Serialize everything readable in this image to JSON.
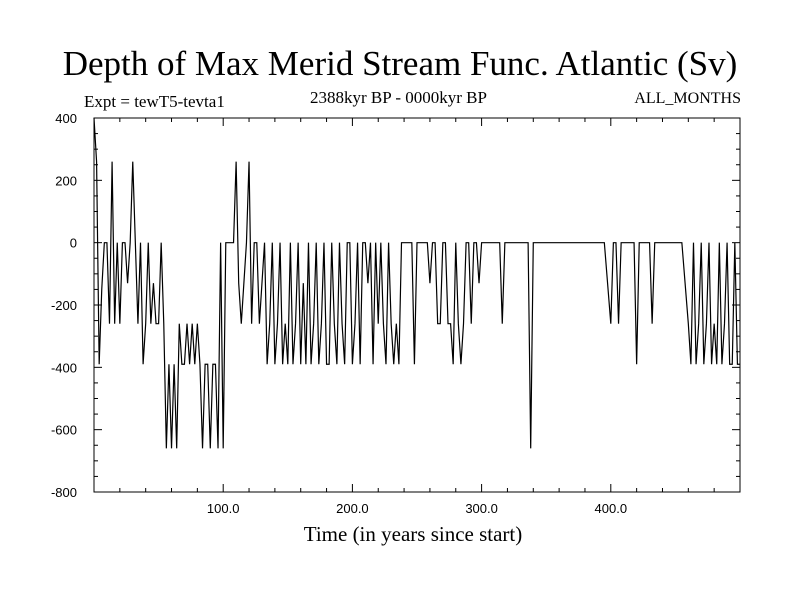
{
  "header": {
    "title": "Depth of Max Merid Stream Func. Atlantic (Sv)",
    "experiment": "Expt = tewT5-tevta1",
    "period": "2388kyr BP - 0000kyr BP",
    "months": "ALL_MONTHS"
  },
  "chart_data": {
    "type": "line",
    "title": "Depth of Max Merid Stream Func. Atlantic (Sv)",
    "xlabel": "Time (in years since start)",
    "ylabel": "",
    "xlim": [
      0,
      500
    ],
    "ylim": [
      -800,
      400
    ],
    "x_ticks": [
      100,
      200,
      300,
      400
    ],
    "x_tick_labels": [
      "100.0",
      "200.0",
      "300.0",
      "400.0"
    ],
    "y_ticks": [
      400,
      200,
      0,
      -200,
      -400,
      -600,
      -800
    ],
    "y_tick_labels": [
      "400",
      "200",
      "0",
      "-200",
      "-400",
      "-600",
      "-800"
    ],
    "grid": false,
    "series": [
      {
        "values": [
          [
            0,
            400
          ],
          [
            2,
            260
          ],
          [
            4,
            -390
          ],
          [
            6,
            -150
          ],
          [
            8,
            0
          ],
          [
            10,
            0
          ],
          [
            12,
            -260
          ],
          [
            14,
            260
          ],
          [
            16,
            -260
          ],
          [
            18,
            0
          ],
          [
            20,
            -260
          ],
          [
            22,
            0
          ],
          [
            24,
            0
          ],
          [
            26,
            -130
          ],
          [
            28,
            0
          ],
          [
            30,
            260
          ],
          [
            32,
            0
          ],
          [
            34,
            -260
          ],
          [
            36,
            0
          ],
          [
            38,
            -390
          ],
          [
            40,
            -260
          ],
          [
            42,
            0
          ],
          [
            44,
            -260
          ],
          [
            46,
            -130
          ],
          [
            48,
            -260
          ],
          [
            50,
            -260
          ],
          [
            52,
            0
          ],
          [
            54,
            -260
          ],
          [
            56,
            -660
          ],
          [
            58,
            -390
          ],
          [
            60,
            -660
          ],
          [
            62,
            -390
          ],
          [
            64,
            -660
          ],
          [
            66,
            -260
          ],
          [
            68,
            -390
          ],
          [
            70,
            -390
          ],
          [
            72,
            -260
          ],
          [
            74,
            -390
          ],
          [
            76,
            -260
          ],
          [
            78,
            -390
          ],
          [
            80,
            -260
          ],
          [
            82,
            -390
          ],
          [
            84,
            -660
          ],
          [
            86,
            -390
          ],
          [
            88,
            -390
          ],
          [
            90,
            -660
          ],
          [
            92,
            -390
          ],
          [
            94,
            -390
          ],
          [
            96,
            -660
          ],
          [
            98,
            0
          ],
          [
            100,
            -660
          ],
          [
            102,
            0
          ],
          [
            104,
            0
          ],
          [
            106,
            0
          ],
          [
            108,
            0
          ],
          [
            110,
            260
          ],
          [
            112,
            -130
          ],
          [
            114,
            -260
          ],
          [
            116,
            -130
          ],
          [
            118,
            0
          ],
          [
            120,
            260
          ],
          [
            122,
            -260
          ],
          [
            124,
            0
          ],
          [
            126,
            0
          ],
          [
            128,
            -260
          ],
          [
            130,
            -130
          ],
          [
            132,
            0
          ],
          [
            134,
            -390
          ],
          [
            136,
            -260
          ],
          [
            138,
            0
          ],
          [
            140,
            -390
          ],
          [
            142,
            -260
          ],
          [
            144,
            0
          ],
          [
            146,
            -390
          ],
          [
            148,
            -260
          ],
          [
            150,
            -390
          ],
          [
            152,
            0
          ],
          [
            154,
            -390
          ],
          [
            156,
            -260
          ],
          [
            158,
            0
          ],
          [
            160,
            -390
          ],
          [
            162,
            -130
          ],
          [
            164,
            -390
          ],
          [
            166,
            0
          ],
          [
            168,
            -390
          ],
          [
            170,
            -260
          ],
          [
            172,
            0
          ],
          [
            174,
            -390
          ],
          [
            176,
            -260
          ],
          [
            178,
            0
          ],
          [
            180,
            -390
          ],
          [
            182,
            -390
          ],
          [
            184,
            0
          ],
          [
            186,
            -260
          ],
          [
            188,
            -390
          ],
          [
            190,
            0
          ],
          [
            192,
            -260
          ],
          [
            194,
            -390
          ],
          [
            196,
            0
          ],
          [
            198,
            0
          ],
          [
            200,
            -390
          ],
          [
            202,
            -260
          ],
          [
            204,
            0
          ],
          [
            206,
            -390
          ],
          [
            208,
            0
          ],
          [
            210,
            0
          ],
          [
            212,
            -130
          ],
          [
            214,
            0
          ],
          [
            216,
            -390
          ],
          [
            218,
            0
          ],
          [
            220,
            -260
          ],
          [
            222,
            0
          ],
          [
            224,
            -260
          ],
          [
            226,
            -390
          ],
          [
            228,
            0
          ],
          [
            230,
            -260
          ],
          [
            232,
            -390
          ],
          [
            234,
            -260
          ],
          [
            236,
            -390
          ],
          [
            238,
            0
          ],
          [
            240,
            0
          ],
          [
            242,
            0
          ],
          [
            244,
            0
          ],
          [
            246,
            0
          ],
          [
            248,
            -390
          ],
          [
            250,
            0
          ],
          [
            252,
            0
          ],
          [
            254,
            0
          ],
          [
            256,
            0
          ],
          [
            258,
            0
          ],
          [
            260,
            -130
          ],
          [
            262,
            0
          ],
          [
            264,
            0
          ],
          [
            266,
            -260
          ],
          [
            268,
            -260
          ],
          [
            270,
            0
          ],
          [
            272,
            0
          ],
          [
            274,
            -260
          ],
          [
            276,
            -260
          ],
          [
            278,
            -390
          ],
          [
            280,
            0
          ],
          [
            282,
            -260
          ],
          [
            284,
            -390
          ],
          [
            286,
            -260
          ],
          [
            288,
            0
          ],
          [
            290,
            0
          ],
          [
            292,
            -260
          ],
          [
            294,
            0
          ],
          [
            296,
            0
          ],
          [
            298,
            -130
          ],
          [
            300,
            0
          ],
          [
            302,
            0
          ],
          [
            304,
            0
          ],
          [
            306,
            0
          ],
          [
            308,
            0
          ],
          [
            310,
            0
          ],
          [
            312,
            0
          ],
          [
            314,
            0
          ],
          [
            316,
            -260
          ],
          [
            318,
            0
          ],
          [
            320,
            0
          ],
          [
            322,
            0
          ],
          [
            324,
            0
          ],
          [
            326,
            0
          ],
          [
            328,
            0
          ],
          [
            330,
            0
          ],
          [
            332,
            0
          ],
          [
            334,
            0
          ],
          [
            336,
            0
          ],
          [
            338,
            -660
          ],
          [
            340,
            0
          ],
          [
            342,
            0
          ],
          [
            360,
            0
          ],
          [
            380,
            0
          ],
          [
            390,
            0
          ],
          [
            395,
            0
          ],
          [
            400,
            -260
          ],
          [
            402,
            0
          ],
          [
            404,
            0
          ],
          [
            406,
            -260
          ],
          [
            408,
            0
          ],
          [
            410,
            0
          ],
          [
            412,
            0
          ],
          [
            414,
            0
          ],
          [
            416,
            0
          ],
          [
            418,
            0
          ],
          [
            420,
            -390
          ],
          [
            422,
            0
          ],
          [
            424,
            0
          ],
          [
            426,
            0
          ],
          [
            428,
            0
          ],
          [
            430,
            0
          ],
          [
            432,
            -260
          ],
          [
            434,
            0
          ],
          [
            436,
            0
          ],
          [
            440,
            0
          ],
          [
            450,
            0
          ],
          [
            455,
            0
          ],
          [
            460,
            -260
          ],
          [
            462,
            -390
          ],
          [
            464,
            0
          ],
          [
            466,
            -390
          ],
          [
            468,
            -260
          ],
          [
            470,
            0
          ],
          [
            472,
            -390
          ],
          [
            474,
            -260
          ],
          [
            476,
            0
          ],
          [
            478,
            -390
          ],
          [
            480,
            -260
          ],
          [
            482,
            -390
          ],
          [
            484,
            0
          ],
          [
            486,
            -390
          ],
          [
            488,
            -260
          ],
          [
            490,
            0
          ],
          [
            492,
            -390
          ],
          [
            494,
            -390
          ],
          [
            496,
            0
          ],
          [
            498,
            -390
          ],
          [
            500,
            -390
          ]
        ]
      }
    ]
  }
}
